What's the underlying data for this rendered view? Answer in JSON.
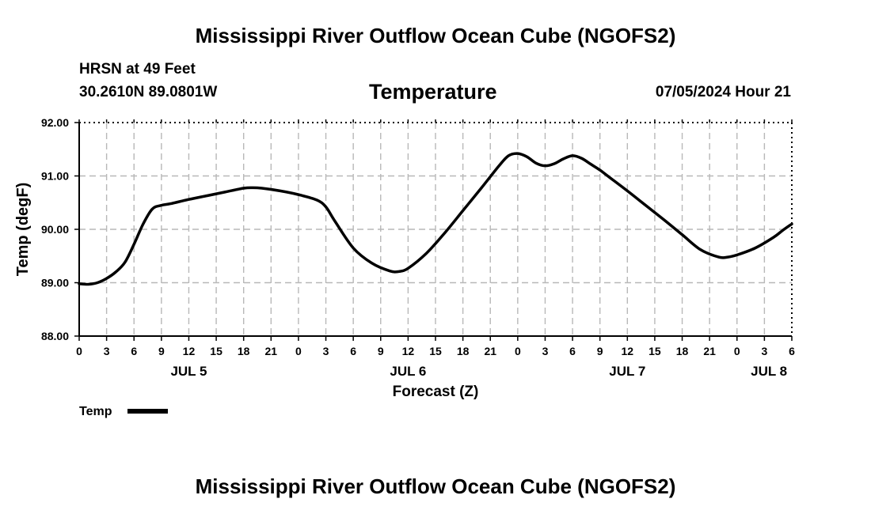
{
  "header": {
    "title": "Mississippi River Outflow Ocean Cube (NGOFS2)",
    "station": "HRSN at 49 Feet",
    "coords": "30.2610N  89.0801W",
    "datetime": "07/05/2024 Hour 21"
  },
  "footer": {
    "title": "Mississippi River Outflow Ocean Cube (NGOFS2)"
  },
  "chart_data": {
    "type": "line",
    "title": "Temperature",
    "xlabel": "Forecast (Z)",
    "ylabel": "Temp (degF)",
    "x_unit": "hours since JUL 5 00Z",
    "xlim": [
      0,
      78
    ],
    "ylim": [
      88.0,
      92.0
    ],
    "grid": true,
    "legend_position": "bottom-left",
    "y_ticks": [
      "88.00",
      "89.00",
      "90.00",
      "91.00",
      "92.00"
    ],
    "x_ticks": [
      {
        "hour": 0,
        "label": "0"
      },
      {
        "hour": 3,
        "label": "3"
      },
      {
        "hour": 6,
        "label": "6"
      },
      {
        "hour": 9,
        "label": "9"
      },
      {
        "hour": 12,
        "label": "12"
      },
      {
        "hour": 15,
        "label": "15"
      },
      {
        "hour": 18,
        "label": "18"
      },
      {
        "hour": 21,
        "label": "21"
      },
      {
        "hour": 24,
        "label": "0"
      },
      {
        "hour": 27,
        "label": "3"
      },
      {
        "hour": 30,
        "label": "6"
      },
      {
        "hour": 33,
        "label": "9"
      },
      {
        "hour": 36,
        "label": "12"
      },
      {
        "hour": 39,
        "label": "15"
      },
      {
        "hour": 42,
        "label": "18"
      },
      {
        "hour": 45,
        "label": "21"
      },
      {
        "hour": 48,
        "label": "0"
      },
      {
        "hour": 51,
        "label": "3"
      },
      {
        "hour": 54,
        "label": "6"
      },
      {
        "hour": 57,
        "label": "9"
      },
      {
        "hour": 60,
        "label": "12"
      },
      {
        "hour": 63,
        "label": "15"
      },
      {
        "hour": 66,
        "label": "18"
      },
      {
        "hour": 69,
        "label": "21"
      },
      {
        "hour": 72,
        "label": "0"
      },
      {
        "hour": 75,
        "label": "3"
      },
      {
        "hour": 78,
        "label": "6"
      }
    ],
    "day_labels": [
      {
        "hour": 12,
        "label": "JUL 5"
      },
      {
        "hour": 36,
        "label": "JUL 6"
      },
      {
        "hour": 60,
        "label": "JUL 7"
      },
      {
        "hour": 75.5,
        "label": "JUL 8"
      }
    ],
    "series": [
      {
        "name": "Temp",
        "x": [
          0,
          1,
          2,
          3,
          4,
          5,
          6,
          7,
          8,
          9,
          10,
          12,
          14,
          16,
          18,
          19,
          20,
          22,
          24,
          26,
          27,
          28,
          30,
          32,
          34,
          35,
          36,
          38,
          40,
          42,
          44,
          46,
          47,
          48,
          49,
          50,
          51,
          52,
          53,
          54,
          55,
          56,
          57,
          58,
          60,
          62,
          64,
          66,
          68,
          70,
          71,
          72,
          74,
          76,
          77,
          78
        ],
        "values": [
          88.98,
          88.97,
          89.0,
          89.08,
          89.2,
          89.38,
          89.72,
          90.1,
          90.38,
          90.45,
          90.48,
          90.56,
          90.63,
          90.7,
          90.77,
          90.78,
          90.77,
          90.72,
          90.65,
          90.55,
          90.42,
          90.15,
          89.65,
          89.37,
          89.22,
          89.21,
          89.27,
          89.55,
          89.93,
          90.35,
          90.77,
          91.2,
          91.38,
          91.42,
          91.36,
          91.24,
          91.19,
          91.23,
          91.32,
          91.38,
          91.33,
          91.22,
          91.11,
          90.98,
          90.72,
          90.45,
          90.18,
          89.9,
          89.62,
          89.48,
          89.48,
          89.52,
          89.65,
          89.85,
          89.98,
          90.1
        ]
      }
    ]
  }
}
